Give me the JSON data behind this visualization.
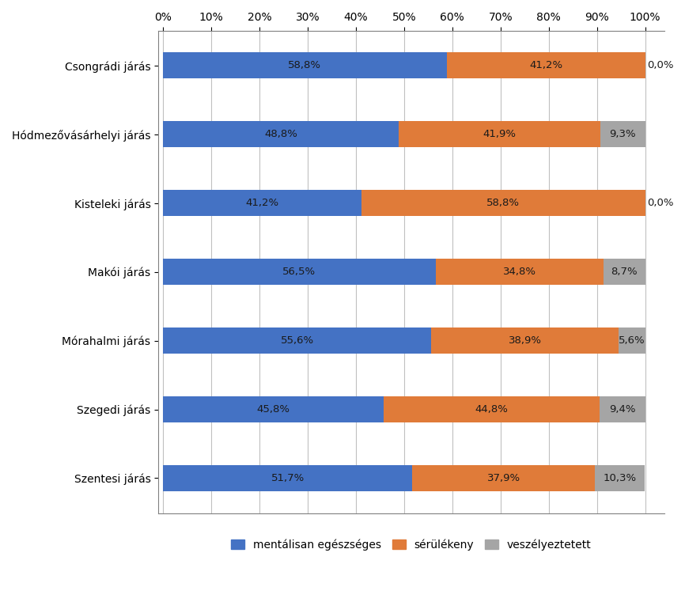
{
  "categories": [
    "Csongrádi járás",
    "Hódmezővásárhelyi járás",
    "Kisteleki járás",
    "Makói járás",
    "Mórahalmi járás",
    "Szegedi járás",
    "Szentesi járás"
  ],
  "mentally_healthy": [
    58.8,
    48.8,
    41.2,
    56.5,
    55.6,
    45.8,
    51.7
  ],
  "vulnerable": [
    41.2,
    41.9,
    58.8,
    34.8,
    38.9,
    44.8,
    37.9
  ],
  "at_risk": [
    0.0,
    9.3,
    0.0,
    8.7,
    5.6,
    9.4,
    10.3
  ],
  "color_healthy": "#4472C4",
  "color_vulnerable": "#E07B39",
  "color_at_risk": "#A5A5A5",
  "label_healthy": "mentálisan egészséges",
  "label_vulnerable": "sérülékeny",
  "label_at_risk": "veszélyeztetett",
  "bar_height": 0.38,
  "xlim": [
    0,
    100
  ],
  "xticks": [
    0,
    10,
    20,
    30,
    40,
    50,
    60,
    70,
    80,
    90,
    100
  ],
  "xtick_labels": [
    "0%",
    "10%",
    "20%",
    "30%",
    "40%",
    "50%",
    "60%",
    "70%",
    "80%",
    "90%",
    "100%"
  ],
  "label_fontsize": 9.5,
  "tick_fontsize": 10,
  "legend_fontsize": 10,
  "text_color": "#1a1a1a",
  "background_color": "#FFFFFF"
}
